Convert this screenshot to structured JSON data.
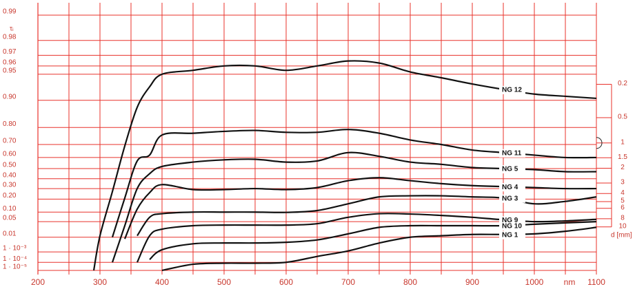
{
  "chart_data": {
    "type": "line",
    "y_label": "τᵢ",
    "x_unit_label": "nm",
    "y2_label": "d [mm]",
    "x": [
      290,
      300,
      320,
      340,
      360,
      380,
      400,
      450,
      500,
      550,
      600,
      650,
      700,
      750,
      800,
      850,
      900,
      950,
      1000,
      1050,
      1100
    ],
    "xlim": [
      200,
      1100
    ],
    "xticks": [
      200,
      300,
      400,
      500,
      600,
      700,
      800,
      900,
      1000,
      1100
    ],
    "x_minor_grid": [
      250,
      350,
      450,
      550,
      650,
      750,
      850,
      950,
      1050
    ],
    "yscale": "double-log",
    "ylim": [
      0.99,
      1e-05
    ],
    "yticks": [
      0.99,
      0.98,
      0.97,
      0.96,
      0.95,
      {
        "value": 0.9,
        "label": "0.90"
      },
      {
        "value": 0.8,
        "label": "0.80"
      },
      {
        "value": 0.7,
        "label": "0.70"
      },
      {
        "value": 0.6,
        "label": "0.60"
      },
      {
        "value": 0.5,
        "label": "0.50"
      },
      {
        "value": 0.4,
        "label": "0.40"
      },
      {
        "value": 0.3,
        "label": "0.30"
      },
      {
        "value": 0.2,
        "label": "0.20"
      },
      {
        "value": 0.1,
        "label": "0.10"
      },
      0.05,
      0.01,
      {
        "value": 0.001,
        "label": "1 · 10⁻³"
      },
      {
        "value": 0.0001,
        "label": "1 · 10⁻⁴"
      },
      {
        "value": 1e-05,
        "label": "1 · 10⁻⁵"
      }
    ],
    "y2scale": "log",
    "y2lim": [
      0.03,
      33
    ],
    "y2ticks": [
      0.2,
      0.5,
      1,
      1.5,
      2,
      3,
      4,
      5,
      6,
      8,
      10
    ],
    "grid": true,
    "grid_color": "#e8302a",
    "series": [
      {
        "name": "NG 12",
        "color": "#111111",
        "values": [
          1e-05,
          0.012,
          0.27,
          0.69,
          0.88,
          0.93,
          0.95,
          0.955,
          0.96,
          0.96,
          0.955,
          0.96,
          0.965,
          0.963,
          0.953,
          0.945,
          0.935,
          0.925,
          0.915,
          0.91,
          0.905
        ]
      },
      {
        "name": "NG 11",
        "color": "#111111",
        "values": [
          null,
          null,
          0.01,
          0.21,
          0.57,
          0.62,
          0.76,
          0.77,
          0.78,
          0.785,
          0.775,
          0.775,
          0.79,
          0.77,
          0.73,
          0.7,
          0.66,
          0.64,
          0.62,
          0.6,
          0.6
        ]
      },
      {
        "name": "NG 5",
        "color": "#111111",
        "values": [
          null,
          null,
          0.0001,
          0.035,
          0.3,
          0.45,
          0.52,
          0.56,
          0.58,
          0.585,
          0.56,
          0.57,
          0.64,
          0.61,
          0.56,
          0.54,
          0.51,
          0.5,
          0.49,
          0.47,
          0.47
        ]
      },
      {
        "name": "NG 4",
        "color": "#111111",
        "values": [
          null,
          null,
          null,
          0.008,
          0.12,
          0.26,
          0.34,
          0.29,
          0.29,
          0.3,
          0.29,
          0.31,
          0.38,
          0.41,
          0.38,
          0.35,
          0.33,
          0.32,
          0.31,
          0.3,
          0.3
        ]
      },
      {
        "name": "NG 3",
        "color": "#111111",
        "values": [
          null,
          null,
          null,
          null,
          0.012,
          0.07,
          0.09,
          0.1,
          0.1,
          0.1,
          0.098,
          0.11,
          0.16,
          0.22,
          0.23,
          0.23,
          0.22,
          0.21,
          0.16,
          0.18,
          0.22
        ]
      },
      {
        "name": "NG 9",
        "color": "#111111",
        "values": [
          null,
          null,
          null,
          null,
          0.0001,
          0.012,
          0.025,
          0.035,
          0.037,
          0.037,
          0.037,
          0.042,
          0.07,
          0.09,
          0.088,
          0.08,
          0.07,
          0.058,
          0.05,
          0.053,
          0.06
        ]
      },
      {
        "name": "NG 10",
        "color": "#111111",
        "values": [
          null,
          null,
          null,
          null,
          null,
          0.0002,
          0.0015,
          0.004,
          0.0045,
          0.0045,
          0.005,
          0.007,
          0.015,
          0.03,
          0.035,
          0.035,
          0.035,
          0.035,
          0.04,
          0.045,
          0.05
        ]
      },
      {
        "name": "NG 1",
        "color": "#111111",
        "values": [
          null,
          null,
          null,
          null,
          null,
          null,
          1e-05,
          6e-05,
          8e-05,
          8e-05,
          0.0001,
          0.0004,
          0.0012,
          0.0045,
          0.01,
          0.012,
          0.014,
          0.014,
          0.015,
          0.02,
          0.03
        ]
      }
    ]
  }
}
